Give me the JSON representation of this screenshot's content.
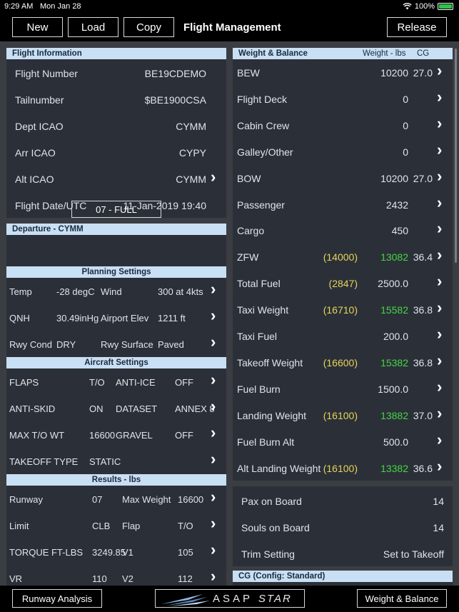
{
  "status": {
    "time": "9:29 AM",
    "date": "Mon Jan 28",
    "battery": "100%"
  },
  "topbar": {
    "new_label": "New",
    "load_label": "Load",
    "copy_label": "Copy",
    "title": "Flight Management",
    "release_label": "Release"
  },
  "flight_info": {
    "header": "Flight Information",
    "rows": [
      {
        "label": "Flight Number",
        "value": "BE19CDEMO"
      },
      {
        "label": "Tailnumber",
        "value": "$BE1900CSA"
      },
      {
        "label": "Dept ICAO",
        "value": "CYMM"
      },
      {
        "label": "Arr ICAO",
        "value": "CYPY"
      },
      {
        "label": "Alt ICAO",
        "value": "CYMM"
      },
      {
        "label": "Flight Date/UTC",
        "value": "11-Jan-2019 19:40"
      }
    ]
  },
  "departure": {
    "header": "Departure - CYMM",
    "runway_select": "07 - FULL",
    "planning_header": "Planning Settings",
    "planning": [
      {
        "l1": "Temp",
        "v1": "-28 degC",
        "l2": "Wind",
        "v2": "300 at 4kts"
      },
      {
        "l1": "QNH",
        "v1": "30.49inHg",
        "l2": "Airport Elev",
        "v2": "1211 ft"
      },
      {
        "l1": "Rwy Cond",
        "v1": "DRY",
        "l2": "Rwy Surface",
        "v2": "Paved"
      }
    ],
    "aircraft_header": "Aircraft Settings",
    "aircraft": [
      {
        "l1": "FLAPS",
        "v1": "T/O",
        "l2": "ANTI-ICE",
        "v2": "OFF"
      },
      {
        "l1": "ANTI-SKID",
        "v1": "ON",
        "l2": "DATASET",
        "v2": "ANNEX 8"
      },
      {
        "l1": "MAX T/O WT",
        "v1": "16600",
        "l2": "GRAVEL",
        "v2": "OFF"
      },
      {
        "l1": "TAKEOFF TYPE",
        "v1": "STATIC",
        "l2": "",
        "v2": ""
      }
    ],
    "results_header": "Results - lbs",
    "results": [
      {
        "l1": "Runway",
        "v1": "07",
        "l2": "Max Weight",
        "v2": "16600"
      },
      {
        "l1": "Limit",
        "v1": "CLB",
        "l2": "Flap",
        "v2": "T/O"
      },
      {
        "l1": "TORQUE FT-LBS",
        "v1": "3249.85",
        "l2": "V1",
        "v2": "105"
      },
      {
        "l1": "VR",
        "v1": "110",
        "l2": "V2",
        "v2": "112"
      }
    ]
  },
  "weight_balance": {
    "header": "Weight & Balance",
    "col_weight": "Weight - lbs",
    "col_cg": "CG",
    "rows": [
      {
        "label": "BEW",
        "limit": "",
        "value": "10200",
        "cg": "27.0",
        "green": false
      },
      {
        "label": "Flight Deck",
        "limit": "",
        "value": "0",
        "cg": "",
        "green": false
      },
      {
        "label": "Cabin Crew",
        "limit": "",
        "value": "0",
        "cg": "",
        "green": false
      },
      {
        "label": "Galley/Other",
        "limit": "",
        "value": "0",
        "cg": "",
        "green": false
      },
      {
        "label": "BOW",
        "limit": "",
        "value": "10200",
        "cg": "27.0",
        "green": false
      },
      {
        "label": "Passenger",
        "limit": "",
        "value": "2432",
        "cg": "",
        "green": false
      },
      {
        "label": "Cargo",
        "limit": "",
        "value": "450",
        "cg": "",
        "green": false
      },
      {
        "label": "ZFW",
        "limit": "(14000)",
        "value": "13082",
        "cg": "36.4",
        "green": true
      },
      {
        "label": "Total Fuel",
        "limit": "(2847)",
        "value": "2500.0",
        "cg": "",
        "green": false
      },
      {
        "label": "Taxi Weight",
        "limit": "(16710)",
        "value": "15582",
        "cg": "36.8",
        "green": true
      },
      {
        "label": "Taxi Fuel",
        "limit": "",
        "value": "200.0",
        "cg": "",
        "green": false
      },
      {
        "label": "Takeoff Weight",
        "limit": "(16600)",
        "value": "15382",
        "cg": "36.8",
        "green": true
      },
      {
        "label": "Fuel Burn",
        "limit": "",
        "value": "1500.0",
        "cg": "",
        "green": false
      },
      {
        "label": "Landing Weight",
        "limit": "(16100)",
        "value": "13882",
        "cg": "37.0",
        "green": true
      },
      {
        "label": "Fuel Burn Alt",
        "limit": "",
        "value": "500.0",
        "cg": "",
        "green": false
      },
      {
        "label": "Alt Landing Weight",
        "limit": "(16100)",
        "value": "13382",
        "cg": "36.6",
        "green": true
      }
    ]
  },
  "summary": [
    {
      "label": "Pax on Board",
      "value": "14"
    },
    {
      "label": "Souls on Board",
      "value": "14"
    },
    {
      "label": "Trim Setting",
      "value": "Set to Takeoff"
    }
  ],
  "cg_header": "CG (Config: Standard)",
  "bottombar": {
    "runway_analysis_label": "Runway Analysis",
    "logo_text_a": "ASAP",
    "logo_text_b": "STAR",
    "wb_label": "Weight & Balance"
  }
}
